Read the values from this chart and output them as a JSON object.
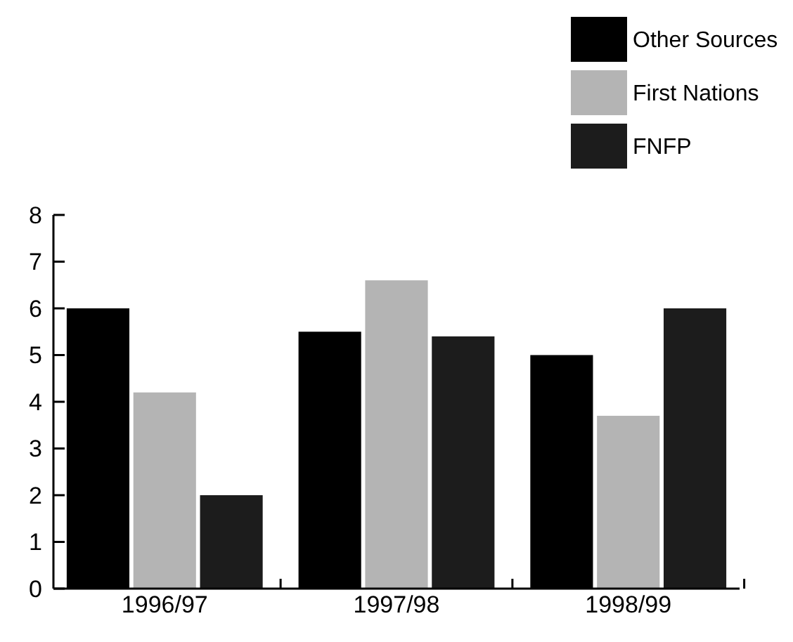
{
  "chart_data": {
    "type": "bar",
    "categories": [
      "1996/97",
      "1997/98",
      "1998/99"
    ],
    "series": [
      {
        "name": "Other Sources",
        "color": "#000000",
        "values": [
          6.0,
          5.5,
          5.0
        ]
      },
      {
        "name": "First Nations",
        "color": "#b4b4b4",
        "values": [
          4.2,
          6.6,
          3.7
        ]
      },
      {
        "name": "FNFP",
        "color": "#1c1c1c",
        "values": [
          2.0,
          5.4,
          6.0
        ]
      }
    ],
    "ylim": [
      0,
      8
    ],
    "yticks": [
      0,
      1,
      2,
      3,
      4,
      5,
      6,
      7,
      8
    ],
    "legend": "top right",
    "grid": false
  }
}
